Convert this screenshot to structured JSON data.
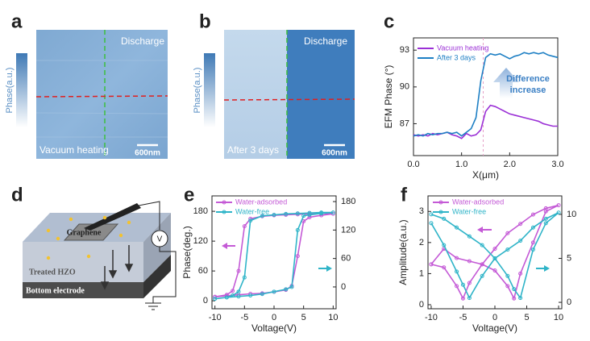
{
  "figure": {
    "a": {
      "label": "a",
      "colorbar": "Phase(a.u.)",
      "region": "Discharge",
      "condition": "Vacuum heating",
      "scale_bar": "600nm"
    },
    "b": {
      "label": "b",
      "colorbar": "Phase(a.u.)",
      "region": "Discharge",
      "condition": "After 3 days",
      "scale_bar": "600nm"
    },
    "c": {
      "label": "c"
    },
    "d": {
      "label": "d",
      "graphene": "Graphene",
      "layer": "Treated HZO",
      "electrode": "Bottom electrode",
      "source": "V"
    },
    "e": {
      "label": "e"
    },
    "f": {
      "label": "f"
    }
  },
  "chart_data": [
    {
      "type": "line",
      "xlabel": "X(μm)",
      "ylabel": "EFM Phase (°)",
      "annotation": [
        "Difference",
        "increase"
      ],
      "x": [
        0,
        0.1,
        0.2,
        0.3,
        0.4,
        0.5,
        0.6,
        0.7,
        0.8,
        0.9,
        1.0,
        1.1,
        1.2,
        1.3,
        1.4,
        1.5,
        1.6,
        1.7,
        1.8,
        1.9,
        2.0,
        2.1,
        2.2,
        2.3,
        2.4,
        2.5,
        2.6,
        2.7,
        2.8,
        2.9,
        3.0
      ],
      "series": [
        {
          "name": "Vacuum heating",
          "color": "#9b30d6",
          "values": [
            86.1,
            86.0,
            86.1,
            86.0,
            86.2,
            86.1,
            86.2,
            86.3,
            86.1,
            86.0,
            85.8,
            86.2,
            86.0,
            86.1,
            86.5,
            88.0,
            88.5,
            88.4,
            88.2,
            88.0,
            87.8,
            87.7,
            87.6,
            87.5,
            87.4,
            87.3,
            87.2,
            87.0,
            86.9,
            86.8,
            86.8
          ]
        },
        {
          "name": "After 3 days",
          "color": "#1d7fc4",
          "values": [
            86.0,
            86.1,
            86.0,
            86.2,
            86.1,
            86.2,
            86.2,
            86.3,
            86.2,
            86.3,
            86.0,
            86.3,
            86.6,
            87.5,
            90.5,
            92.4,
            92.7,
            92.6,
            92.7,
            92.5,
            92.3,
            92.5,
            92.6,
            92.8,
            92.7,
            92.8,
            92.7,
            92.8,
            92.6,
            92.5,
            92.4
          ]
        }
      ],
      "vline": 1.45,
      "xlim": [
        0,
        3
      ],
      "xticks": [
        {
          "value": 0,
          "label": "0.0"
        },
        {
          "value": 1,
          "label": "1.0"
        },
        {
          "value": 2,
          "label": "2.0"
        },
        {
          "value": 3,
          "label": "3.0"
        }
      ],
      "ylim": [
        84.4,
        94.0
      ],
      "yticks": [
        87,
        90,
        93
      ],
      "markers": false
    },
    {
      "type": "line",
      "xlabel": "Voltage(V)",
      "ylabel": "Phase(deg.)",
      "x": [
        -10,
        -8,
        -6,
        -4,
        -2,
        0,
        2,
        3,
        4,
        5,
        6,
        8,
        10,
        8,
        6,
        4,
        2,
        0,
        -2,
        -4,
        -5,
        -6,
        -7,
        -8,
        -10
      ],
      "series": [
        {
          "name": "Water-adsorbed",
          "color": "#c45ad6",
          "values": [
            8,
            10,
            12,
            14,
            15,
            18,
            22,
            30,
            90,
            160,
            168,
            172,
            175,
            176,
            175,
            174,
            173,
            172,
            170,
            165,
            150,
            60,
            20,
            12,
            8
          ]
        },
        {
          "name": "Water-free",
          "color": "#2fb4c8",
          "axis": "y2",
          "values": [
            -25,
            -22,
            -20,
            -18,
            -15,
            -10,
            -5,
            0,
            120,
            150,
            152,
            155,
            157,
            157,
            156,
            155,
            154,
            152,
            150,
            140,
            20,
            -10,
            -18,
            -22,
            -25
          ]
        }
      ],
      "xlim": [
        -10.5,
        10.5
      ],
      "xticks": [
        -10,
        -5,
        0,
        5,
        10
      ],
      "ylim": [
        -16,
        211
      ],
      "yticks": [
        0,
        60,
        120,
        180
      ],
      "y2lim": [
        -46,
        192
      ],
      "y2ticks": [
        0,
        60,
        120,
        180
      ],
      "markers": true
    },
    {
      "type": "line",
      "xlabel": "Voltage(V)",
      "ylabel": "Amplitude(a.u.)",
      "x": [
        -10,
        -8,
        -6,
        -5,
        -4,
        -2,
        0,
        2,
        4,
        6,
        8,
        10,
        8,
        6,
        4,
        3,
        2,
        0,
        -2,
        -4,
        -6,
        -8,
        -10
      ],
      "series": [
        {
          "name": "Water-adsorbed",
          "color": "#c45ad6",
          "values": [
            1.3,
            1.2,
            0.6,
            0.2,
            0.7,
            1.3,
            1.8,
            2.3,
            2.6,
            2.9,
            3.1,
            3.2,
            3.0,
            2.0,
            1.0,
            0.2,
            0.6,
            1.1,
            1.3,
            1.4,
            1.5,
            1.8,
            1.3
          ]
        },
        {
          "name": "Water-free",
          "color": "#2fb4c8",
          "axis": "y2",
          "values": [
            9.0,
            6.5,
            3.5,
            2.0,
            0.5,
            3.0,
            5.0,
            6.0,
            7.0,
            8.5,
            9.5,
            10.2,
            9.0,
            6.0,
            0.5,
            1.5,
            3.0,
            5.0,
            6.5,
            7.5,
            8.5,
            9.5,
            10.0
          ]
        }
      ],
      "xlim": [
        -10.5,
        10.5
      ],
      "xticks": [
        -10,
        -5,
        0,
        5,
        10
      ],
      "ylim": [
        -0.13,
        3.5
      ],
      "yticks": [
        0,
        1,
        2,
        3
      ],
      "y2lim": [
        -0.73,
        12.1
      ],
      "y2ticks": [
        0,
        5,
        10
      ],
      "markers": true
    }
  ]
}
